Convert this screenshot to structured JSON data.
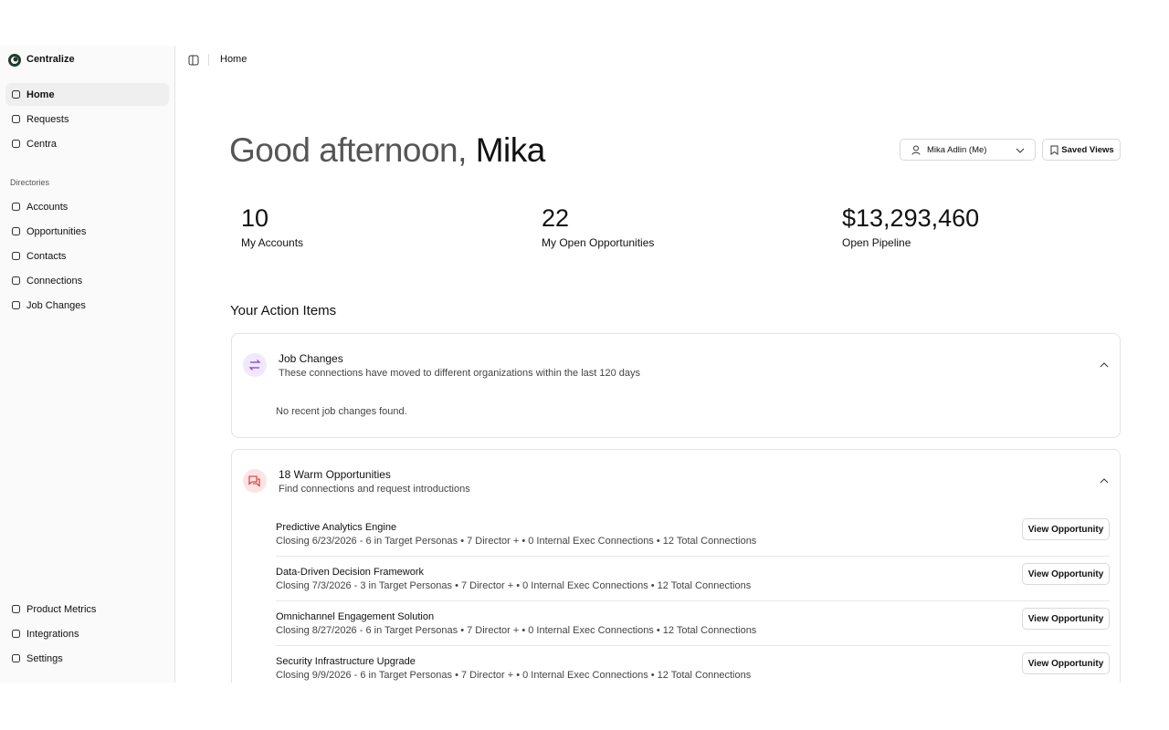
{
  "sidebar": {
    "brand": "Centralize",
    "nav": [
      "Home",
      "Requests",
      "Centra"
    ],
    "section": "Directories",
    "directories": [
      "Accounts",
      "Opportunities",
      "Contacts",
      "Connections",
      "Job Changes"
    ],
    "footer": [
      "Product Metrics",
      "Integrations",
      "Settings"
    ]
  },
  "breadcrumb": "Home",
  "greeting": {
    "prefix": "Good afternoon,",
    "name": "Mika"
  },
  "user_select": "Mika Adlin (Me)",
  "saved_views": "Saved Views",
  "stats": [
    {
      "value": "10",
      "label": "My Accounts"
    },
    {
      "value": "22",
      "label": "My Open Opportunities"
    },
    {
      "value": "$13,293,460",
      "label": "Open Pipeline"
    }
  ],
  "action_items": {
    "title": "Your Action Items",
    "job_changes": {
      "title": "Job Changes",
      "subtitle": "These connections have moved to different organizations within the last 120 days",
      "empty": "No recent job changes found."
    },
    "warm": {
      "title": "18 Warm Opportunities",
      "subtitle": "Find connections and request introductions",
      "button": "View Opportunity",
      "rows": [
        {
          "name": "Predictive Analytics Engine",
          "details": "Closing 6/23/2026 - 6 in Target Personas • 7 Director + • 0 Internal Exec Connections • 12 Total Connections"
        },
        {
          "name": "Data-Driven Decision Framework",
          "details": "Closing 7/3/2026 - 3 in Target Personas • 7 Director + • 0 Internal Exec Connections • 12 Total Connections"
        },
        {
          "name": "Omnichannel Engagement Solution",
          "details": "Closing 8/27/2026 - 6 in Target Personas • 7 Director + • 0 Internal Exec Connections • 12 Total Connections"
        },
        {
          "name": "Security Infrastructure Upgrade",
          "details": "Closing 9/9/2026 - 6 in Target Personas • 7 Director + • 0 Internal Exec Connections • 12 Total Connections"
        }
      ]
    }
  }
}
